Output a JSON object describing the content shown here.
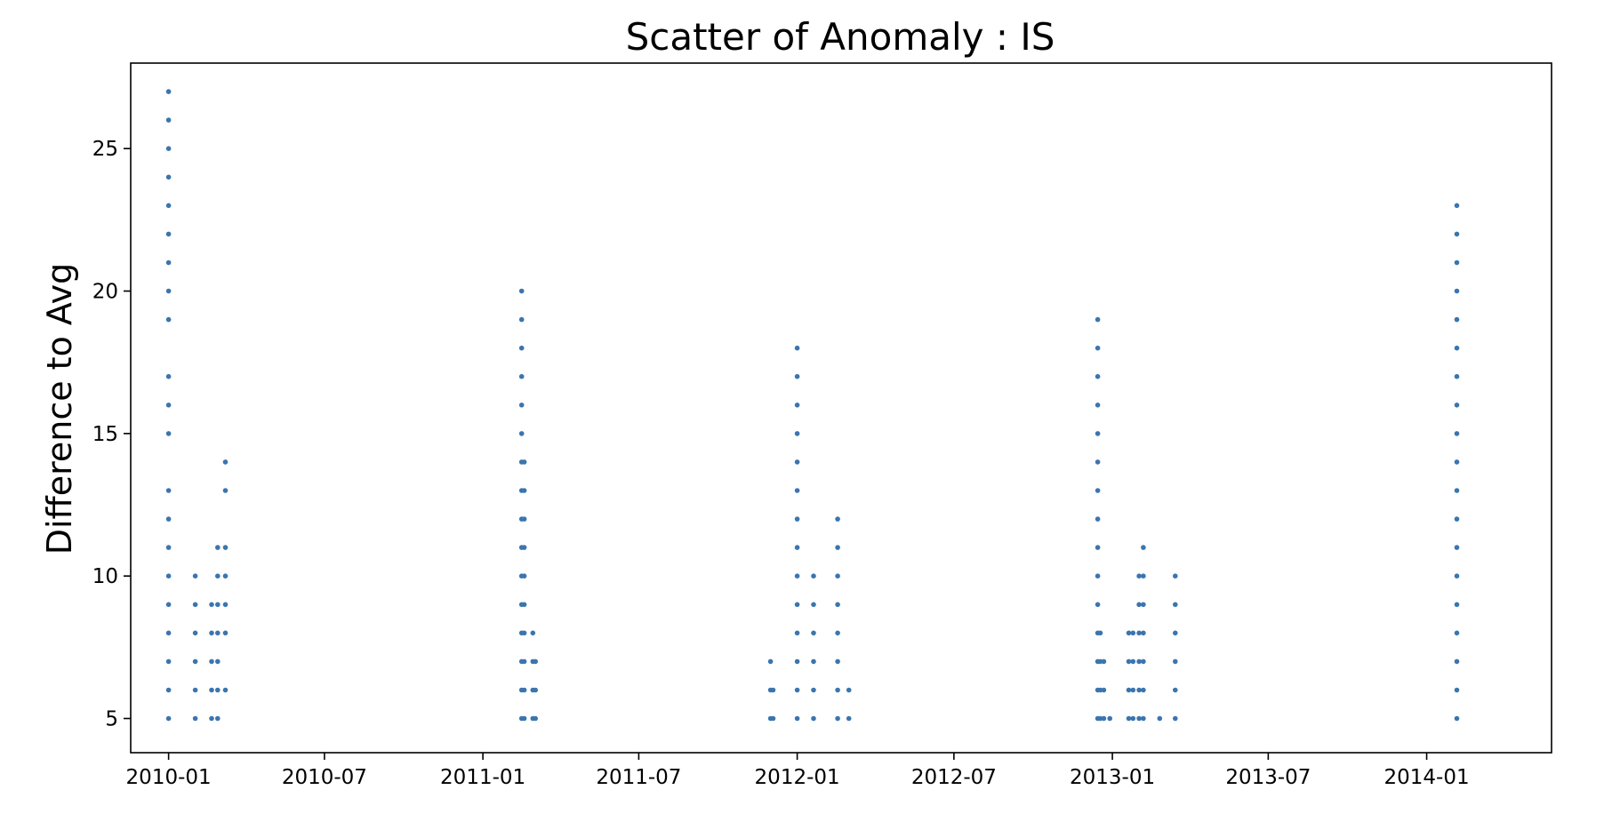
{
  "chart_data": {
    "type": "scatter",
    "title": "Scatter of Anomaly : IS",
    "xlabel": "",
    "ylabel": "Difference to Avg",
    "x_ticks": [
      "2010-01",
      "2010-07",
      "2011-01",
      "2011-07",
      "2012-01",
      "2012-07",
      "2013-01",
      "2013-07",
      "2014-01"
    ],
    "y_ticks": [
      5,
      10,
      15,
      20,
      25
    ],
    "xlim": [
      "2009-11-18",
      "2014-05-26"
    ],
    "ylim": [
      3.8,
      28.0
    ],
    "grid": false,
    "marker_color": "#3b75af",
    "points": [
      {
        "date": "2010-01-01",
        "y": [
          5,
          6,
          7,
          8,
          9,
          10,
          11,
          12,
          13,
          15,
          16,
          17,
          19,
          20,
          21,
          22,
          23,
          24,
          25,
          26,
          27
        ]
      },
      {
        "date": "2010-02-01",
        "y": [
          5,
          6,
          7,
          8,
          9,
          10
        ]
      },
      {
        "date": "2010-02-20",
        "y": [
          5,
          6,
          7,
          8,
          9
        ]
      },
      {
        "date": "2010-02-27",
        "y": [
          5,
          6,
          7,
          8,
          9,
          10,
          11
        ]
      },
      {
        "date": "2010-03-08",
        "y": [
          6,
          8,
          9,
          10,
          11,
          13,
          14
        ]
      },
      {
        "date": "2011-02-15",
        "y": [
          5,
          6,
          7,
          8,
          9,
          10,
          11,
          12,
          13,
          14,
          15,
          16,
          17,
          18,
          19,
          20
        ]
      },
      {
        "date": "2011-02-18",
        "y": [
          5,
          6,
          7,
          8,
          9,
          10,
          11,
          12,
          13,
          14
        ]
      },
      {
        "date": "2011-02-28",
        "y": [
          5,
          6,
          7,
          8
        ]
      },
      {
        "date": "2011-03-03",
        "y": [
          5,
          6,
          7
        ]
      },
      {
        "date": "2011-12-01",
        "y": [
          5,
          6,
          7
        ]
      },
      {
        "date": "2011-12-04",
        "y": [
          5,
          6
        ]
      },
      {
        "date": "2012-01-01",
        "y": [
          5,
          6,
          7,
          8,
          9,
          10,
          11,
          12,
          13,
          14,
          15,
          16,
          17,
          18
        ]
      },
      {
        "date": "2012-01-20",
        "y": [
          5,
          6,
          7,
          8,
          9,
          10
        ]
      },
      {
        "date": "2012-02-17",
        "y": [
          5,
          6,
          7,
          8,
          9,
          10,
          11,
          12
        ]
      },
      {
        "date": "2012-03-01",
        "y": [
          5,
          6
        ]
      },
      {
        "date": "2012-12-15",
        "y": [
          5,
          6,
          7,
          8,
          9,
          10,
          11,
          12,
          13,
          14,
          15,
          16,
          17,
          18,
          19
        ]
      },
      {
        "date": "2012-12-18",
        "y": [
          5,
          6,
          7,
          8
        ]
      },
      {
        "date": "2012-12-22",
        "y": [
          5,
          6,
          7
        ]
      },
      {
        "date": "2012-12-29",
        "y": [
          5
        ]
      },
      {
        "date": "2013-01-20",
        "y": [
          5,
          6,
          7,
          8
        ]
      },
      {
        "date": "2013-01-25",
        "y": [
          5,
          6,
          7,
          8
        ]
      },
      {
        "date": "2013-02-01",
        "y": [
          5,
          6,
          7,
          8,
          9,
          10
        ]
      },
      {
        "date": "2013-02-06",
        "y": [
          5,
          6,
          7,
          8,
          9,
          10,
          11
        ]
      },
      {
        "date": "2013-02-25",
        "y": [
          5
        ]
      },
      {
        "date": "2013-03-15",
        "y": [
          5,
          6,
          7,
          8,
          9,
          10
        ]
      },
      {
        "date": "2014-02-05",
        "y": [
          5,
          6,
          7,
          8,
          9,
          10,
          11,
          12,
          13,
          14,
          15,
          16,
          17,
          18,
          19,
          20,
          21,
          22,
          23
        ]
      }
    ]
  }
}
